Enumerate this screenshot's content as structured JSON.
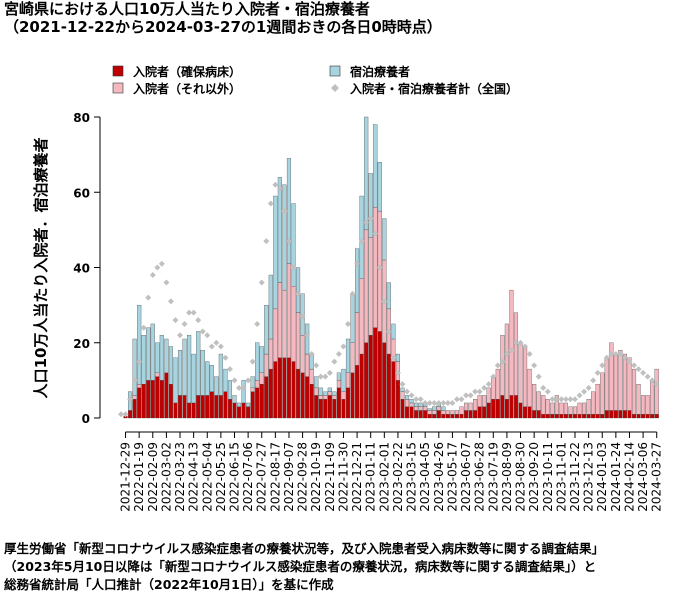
{
  "chart_data": {
    "type": "bar",
    "stacked": true,
    "title": "宮崎県における人口10万人当たり入院者・宿泊療養者",
    "subtitle": "（2021-12-22から2024-03-27の1週間おきの各日0時時点）",
    "y_label": "人口10万人当たり入院者．宿泊療養者",
    "footnote": [
      "厚生労働省「新型コロナウイルス感染症患者の療養状況等，及び入院患者受入病床数等に関する調査結果」",
      "（2023年5月10日以降は「新型コロナウイルス感染症患者の療養状況，病床数等に関する調査結果」）と",
      "総務省統計局「人口推計（2022年10月1日）」を基に作成"
    ],
    "ylim": [
      0,
      80
    ],
    "yticks": [
      0,
      20,
      40,
      60,
      80
    ],
    "categories": [
      null,
      "2021-12-29",
      null,
      null,
      "2022-01-19",
      null,
      null,
      "2022-02-09",
      null,
      null,
      "2022-03-02",
      null,
      null,
      "2022-03-23",
      null,
      null,
      "2022-04-13",
      null,
      null,
      "2022-05-04",
      null,
      null,
      "2022-05-25",
      null,
      null,
      "2022-06-15",
      null,
      null,
      "2022-07-06",
      null,
      null,
      "2022-07-27",
      null,
      null,
      "2022-08-17",
      null,
      null,
      "2022-09-07",
      null,
      null,
      "2022-09-28",
      null,
      null,
      "2022-10-19",
      null,
      null,
      "2022-11-09",
      null,
      null,
      "2022-11-30",
      null,
      null,
      "2022-12-21",
      null,
      null,
      "2023-01-11",
      null,
      null,
      "2023-02-01",
      null,
      null,
      "2023-02-22",
      null,
      null,
      "2023-03-15",
      null,
      null,
      "2023-04-05",
      null,
      null,
      "2023-04-26",
      null,
      null,
      "2023-05-17",
      null,
      null,
      "2023-06-07",
      null,
      null,
      "2023-06-28",
      null,
      null,
      "2023-07-19",
      null,
      null,
      "2023-08-09",
      null,
      null,
      "2023-08-30",
      null,
      null,
      "2023-09-20",
      null,
      null,
      "2023-10-11",
      null,
      null,
      "2023-11-01",
      null,
      null,
      "2023-11-22",
      null,
      null,
      "2023-12-13",
      null,
      null,
      "2024-01-03",
      null,
      null,
      "2024-01-24",
      null,
      null,
      "2024-02-14",
      null,
      null,
      "2024-03-06",
      null,
      null,
      "2024-03-27"
    ],
    "series": [
      {
        "name": "入院者（確保病床）",
        "color": "#c00000",
        "kind": "bar",
        "values": [
          0,
          0.5,
          2,
          5,
          8,
          9,
          10,
          10,
          11,
          10,
          12,
          9,
          4,
          6,
          6,
          4,
          4,
          6,
          6,
          6,
          7,
          6,
          6,
          7,
          5,
          4,
          3,
          4,
          3,
          7,
          8,
          9,
          11,
          13,
          15,
          16,
          16,
          16,
          15,
          13,
          12,
          11,
          9,
          6,
          5,
          5,
          6,
          5,
          8,
          5,
          8,
          12,
          14,
          17,
          20,
          22,
          24,
          23,
          20,
          17,
          15,
          10,
          5,
          3,
          3,
          2,
          2,
          2,
          1,
          1,
          2,
          1,
          1,
          1,
          1,
          1,
          2,
          2,
          2,
          3,
          3,
          4,
          5,
          5,
          6,
          5,
          6,
          6,
          4,
          3,
          3,
          2,
          2,
          1,
          1,
          1,
          1,
          1,
          1,
          1,
          1,
          1,
          1,
          1,
          1,
          1,
          1,
          2,
          2,
          2,
          2,
          2,
          2,
          1,
          1,
          1,
          1,
          1,
          1
        ]
      },
      {
        "name": "入院者（それ以外）",
        "color": "#f4b8c0",
        "kind": "bar",
        "values": [
          0,
          0,
          0,
          1,
          1,
          0,
          0,
          0,
          1,
          0,
          0,
          0,
          0,
          0,
          0,
          0,
          0,
          0,
          0,
          0,
          0,
          0,
          0,
          0,
          0,
          0,
          0,
          0,
          0,
          1,
          2,
          3,
          6,
          8,
          14,
          20,
          18,
          25,
          20,
          15,
          10,
          6,
          4,
          2,
          1,
          1,
          1,
          1,
          2,
          2,
          4,
          8,
          14,
          20,
          30,
          26,
          32,
          32,
          22,
          12,
          6,
          5,
          2,
          2,
          1,
          1,
          1,
          1,
          1,
          1,
          1,
          1,
          1,
          1,
          1,
          2,
          2,
          2,
          3,
          3,
          3,
          4,
          6,
          8,
          16,
          20,
          28,
          22,
          16,
          16,
          10,
          7,
          5,
          5,
          4,
          3,
          5,
          3,
          3,
          2,
          2,
          3,
          3,
          4,
          6,
          8,
          11,
          14,
          18,
          15,
          16,
          15,
          14,
          12,
          8,
          5,
          5,
          9,
          12
        ]
      },
      {
        "name": "宿泊療養者",
        "color": "#a8d4e0",
        "kind": "bar",
        "values": [
          0,
          0,
          5,
          15,
          21,
          13,
          14,
          15,
          8,
          12,
          9,
          10,
          12,
          12,
          15,
          18,
          13,
          17,
          12,
          9,
          7,
          5,
          11,
          6,
          5,
          2,
          1,
          6,
          1,
          3,
          10,
          7,
          13,
          17,
          30,
          28,
          28,
          28,
          22,
          12,
          11,
          8,
          4,
          3,
          2,
          1,
          1,
          1,
          2,
          6,
          9,
          13,
          17,
          22,
          30,
          17,
          22,
          13,
          11,
          7,
          4,
          2,
          1,
          1,
          1,
          1,
          1,
          1,
          0.5,
          1,
          1,
          1,
          null,
          null,
          null,
          null,
          null,
          null,
          null,
          null,
          null,
          null,
          null,
          null,
          null,
          null,
          null,
          null,
          null,
          null,
          null,
          null,
          null,
          null,
          null,
          null,
          null,
          null,
          null,
          null,
          null,
          null,
          null,
          null,
          null,
          null,
          null,
          null,
          null,
          null,
          null,
          null,
          null,
          null,
          null,
          null,
          null,
          null,
          null
        ]
      },
      {
        "name": "入院者・宿泊療養者計（全国）",
        "color": "#c0c0c0",
        "kind": "points",
        "values": [
          1,
          1,
          5,
          10,
          15,
          24,
          32,
          38,
          40,
          41,
          36,
          31,
          26,
          22,
          25,
          28,
          28,
          26,
          23,
          22,
          19,
          20,
          19,
          16,
          13,
          10,
          8,
          8,
          10,
          15,
          25,
          36,
          47,
          57,
          62,
          61,
          55,
          47,
          40,
          33,
          27,
          22,
          17,
          14,
          11,
          11,
          12,
          15,
          17,
          19,
          25,
          33,
          41,
          47,
          52,
          53,
          49,
          40,
          31,
          23,
          16,
          12,
          9,
          7,
          6,
          5,
          5,
          4,
          4,
          4,
          4,
          4,
          4,
          4,
          5,
          5,
          6,
          6,
          7,
          7,
          8,
          9,
          11,
          14,
          15,
          17,
          18,
          20,
          20,
          19,
          17,
          14,
          11,
          8,
          7,
          5,
          5,
          5,
          5,
          5,
          5,
          6,
          7,
          8,
          10,
          12,
          14,
          16,
          17,
          17,
          17,
          16,
          15,
          14,
          13,
          12,
          11,
          10,
          9
        ]
      }
    ]
  }
}
